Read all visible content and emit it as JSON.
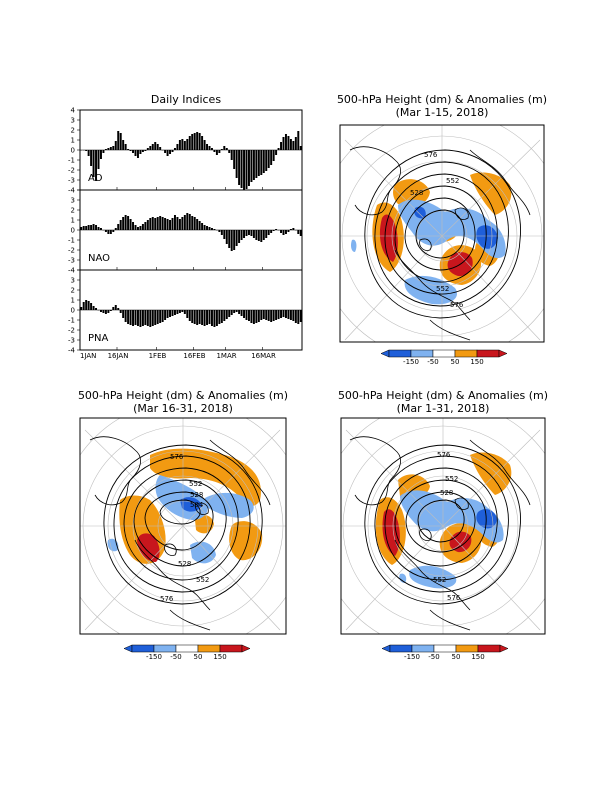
{
  "daily_indices": {
    "title": "Daily Indices",
    "x_ticks": [
      "1JAN",
      "16JAN",
      "1FEB",
      "16FEB",
      "1MAR",
      "16MAR"
    ],
    "y_ticks": [
      "4",
      "3",
      "2",
      "1",
      "0",
      "-1",
      "-2",
      "-3",
      "-4"
    ]
  },
  "maps": [
    {
      "title": "500-hPa Height (dm) & Anomalies (m)",
      "subtitle": "(Mar 1-15, 2018)",
      "contour_labels": [
        "576",
        "552",
        "528",
        "552",
        "576"
      ]
    },
    {
      "title": "500-hPa Height (dm) & Anomalies (m)",
      "subtitle": "(Mar 16-31, 2018)",
      "contour_labels": [
        "576",
        "552",
        "528",
        "504",
        "528",
        "552",
        "576"
      ]
    },
    {
      "title": "500-hPa Height (dm) & Anomalies (m)",
      "subtitle": "(Mar 1-31, 2018)",
      "contour_labels": [
        "576",
        "552",
        "528",
        "552",
        "576"
      ]
    }
  ],
  "colorbar": {
    "labels": [
      "-150",
      "-50",
      "50",
      "150"
    ],
    "colors": {
      "strong_neg": "#1f5fd9",
      "neg": "#7fb2f0",
      "pos": "#f29a12",
      "strong_pos": "#c8161d"
    }
  },
  "chart_data": [
    {
      "type": "bar",
      "name": "AO",
      "x_start": "2018-01-01",
      "days": 90,
      "ylim": [
        -4,
        4
      ],
      "values": [
        0,
        0,
        -0.1,
        -0.6,
        -1.6,
        -2.7,
        -3.1,
        -1.9,
        -0.9,
        -0.3,
        0.1,
        0.2,
        0.3,
        0.4,
        0.9,
        1.9,
        1.7,
        1.0,
        0.6,
        0.1,
        -0.1,
        -0.3,
        -0.6,
        -0.8,
        -0.4,
        -0.2,
        -0.1,
        0.2,
        0.4,
        0.6,
        0.8,
        0.6,
        0.3,
        0,
        -0.3,
        -0.6,
        -0.4,
        -0.2,
        0.2,
        0.6,
        1.0,
        1.1,
        0.9,
        1.1,
        1.4,
        1.6,
        1.7,
        1.8,
        1.7,
        1.4,
        1.0,
        0.6,
        0.4,
        0.2,
        -0.2,
        -0.5,
        -0.3,
        0.1,
        0.4,
        0.2,
        -0.3,
        -1.0,
        -1.9,
        -2.8,
        -3.5,
        -3.8,
        -4.0,
        -3.9,
        -3.6,
        -3.2,
        -3.0,
        -2.8,
        -2.6,
        -2.5,
        -2.3,
        -2.1,
        -1.8,
        -1.5,
        -1.1,
        -0.5,
        0.2,
        0.8,
        1.3,
        1.6,
        1.4,
        1.1,
        0.9,
        1.3,
        1.9,
        0.4
      ]
    },
    {
      "type": "bar",
      "name": "NAO",
      "x_start": "2018-01-01",
      "days": 90,
      "ylim": [
        -4,
        4
      ],
      "values": [
        0.3,
        0.4,
        0.4,
        0.5,
        0.5,
        0.6,
        0.5,
        0.3,
        0.2,
        0,
        -0.2,
        -0.4,
        -0.4,
        -0.2,
        0.2,
        0.6,
        1.0,
        1.3,
        1.5,
        1.4,
        1.1,
        0.8,
        0.5,
        0.3,
        0.4,
        0.6,
        0.8,
        1.0,
        1.2,
        1.3,
        1.2,
        1.3,
        1.4,
        1.3,
        1.2,
        1.1,
        1.0,
        1.2,
        1.5,
        1.3,
        1.1,
        1.3,
        1.5,
        1.7,
        1.6,
        1.4,
        1.3,
        1.1,
        0.9,
        0.7,
        0.5,
        0.4,
        0.3,
        0.2,
        0.1,
        0,
        -0.2,
        -0.5,
        -0.9,
        -1.4,
        -1.8,
        -2.1,
        -2.0,
        -1.6,
        -1.3,
        -1.0,
        -0.8,
        -0.6,
        -0.5,
        -0.6,
        -0.8,
        -1.0,
        -1.1,
        -1.2,
        -1.0,
        -0.8,
        -0.5,
        -0.3,
        -0.1,
        0.1,
        0,
        -0.3,
        -0.5,
        -0.4,
        -0.2,
        0.1,
        0.2,
        0,
        -0.4,
        -0.6
      ]
    },
    {
      "type": "bar",
      "name": "PNA",
      "x_start": "2018-01-01",
      "days": 90,
      "ylim": [
        -4,
        4
      ],
      "values": [
        0.3,
        0.8,
        1.0,
        0.9,
        0.7,
        0.4,
        0.2,
        0,
        -0.2,
        -0.3,
        -0.4,
        -0.3,
        -0.1,
        0.3,
        0.5,
        0.2,
        -0.3,
        -0.8,
        -1.2,
        -1.4,
        -1.5,
        -1.6,
        -1.5,
        -1.6,
        -1.7,
        -1.6,
        -1.5,
        -1.6,
        -1.7,
        -1.6,
        -1.5,
        -1.4,
        -1.3,
        -1.2,
        -1.0,
        -0.8,
        -0.7,
        -0.6,
        -0.5,
        -0.4,
        -0.3,
        -0.2,
        -0.4,
        -0.8,
        -1.1,
        -1.3,
        -1.4,
        -1.5,
        -1.4,
        -1.5,
        -1.6,
        -1.5,
        -1.4,
        -1.6,
        -1.7,
        -1.6,
        -1.4,
        -1.3,
        -1.1,
        -0.9,
        -0.7,
        -0.5,
        -0.3,
        -0.2,
        -0.4,
        -0.6,
        -0.8,
        -1.0,
        -1.1,
        -1.3,
        -1.4,
        -1.3,
        -1.2,
        -1.0,
        -0.9,
        -1.0,
        -1.1,
        -1.2,
        -1.1,
        -1.0,
        -0.9,
        -0.8,
        -0.7,
        -0.8,
        -0.9,
        -1.0,
        -1.1,
        -1.3,
        -1.4,
        -1.2
      ]
    }
  ]
}
